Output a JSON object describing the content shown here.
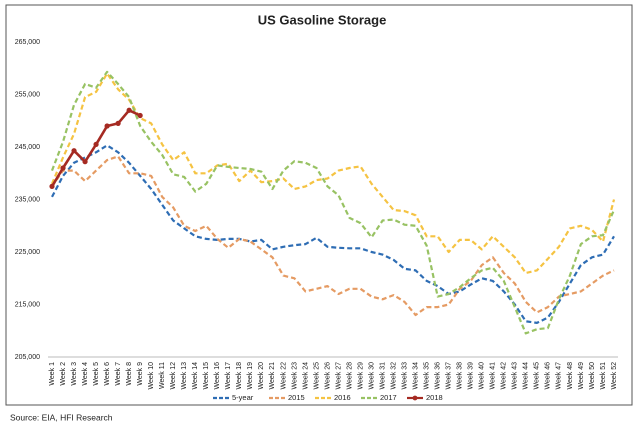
{
  "chart_data": {
    "type": "line",
    "title": "US Gasoline Storage",
    "source": "Source: EIA, HFI Research",
    "categories": [
      "Week 1",
      "Week 2",
      "Week 3",
      "Week 4",
      "Week 5",
      "Week 6",
      "Week 7",
      "Week 8",
      "Week 9",
      "Week 10",
      "Week 11",
      "Week 12",
      "Week 13",
      "Week 14",
      "Week 15",
      "Week 16",
      "Week 17",
      "Week 18",
      "Week 19",
      "Week 20",
      "Week 21",
      "Week 22",
      "Week 23",
      "Week 24",
      "Week 25",
      "Week 26",
      "Week 27",
      "Week 28",
      "Week 29",
      "Week 30",
      "Week 31",
      "Week 32",
      "Week 33",
      "Week 34",
      "Week 35",
      "Week 36",
      "Week 37",
      "Week 38",
      "Week 39",
      "Week 40",
      "Week 41",
      "Week 42",
      "Week 43",
      "Week 44",
      "Week 45",
      "Week 46",
      "Week 47",
      "Week 48",
      "Week 49",
      "Week 50",
      "Week 51",
      "Week 52"
    ],
    "ylim": [
      205000,
      265000
    ],
    "yticks": [
      {
        "value": 205000,
        "label": "205,000"
      },
      {
        "value": 215000,
        "label": "215,000"
      },
      {
        "value": 225000,
        "label": "225,000"
      },
      {
        "value": 235000,
        "label": "235,000"
      },
      {
        "value": 245000,
        "label": "245,000"
      },
      {
        "value": 255000,
        "label": "255,000"
      },
      {
        "value": 265000,
        "label": "265,000"
      }
    ],
    "grid": false,
    "legend": "bottom",
    "series": [
      {
        "name": "5-year",
        "color": "#2e6db4",
        "dash": true,
        "values": [
          235500,
          239500,
          242000,
          243000,
          244000,
          245300,
          244000,
          242000,
          239500,
          237000,
          234000,
          231000,
          229500,
          228000,
          227500,
          227300,
          227500,
          227500,
          227000,
          227300,
          225500,
          226000,
          226300,
          226500,
          227700,
          226000,
          225800,
          225700,
          225700,
          225000,
          224500,
          223500,
          221800,
          221500,
          219500,
          218500,
          217000,
          217500,
          218800,
          220000,
          219500,
          217500,
          215000,
          211800,
          211500,
          212500,
          215500,
          219000,
          222500,
          224000,
          224500,
          228000
        ]
      },
      {
        "name": "2015",
        "color": "#e59b63",
        "dash": true,
        "values": [
          237500,
          240500,
          240500,
          238500,
          240500,
          242500,
          243200,
          240000,
          240000,
          239500,
          235500,
          233500,
          230000,
          229000,
          230000,
          227500,
          225800,
          227500,
          227000,
          225500,
          224000,
          220500,
          220000,
          217500,
          218000,
          218500,
          217000,
          218000,
          218000,
          216500,
          216000,
          216800,
          215500,
          213000,
          214500,
          214500,
          215000,
          218000,
          219500,
          222500,
          224000,
          221000,
          219000,
          215500,
          213500,
          214500,
          216500,
          217000,
          217500,
          219000,
          220500,
          221500
        ]
      },
      {
        "name": "2016",
        "color": "#f5c342",
        "dash": true,
        "values": [
          238000,
          243000,
          247500,
          254500,
          255500,
          259000,
          256000,
          254000,
          250500,
          249500,
          245500,
          242500,
          244000,
          240000,
          240000,
          241500,
          241800,
          238500,
          240500,
          238300,
          238500,
          239000,
          237000,
          237500,
          238700,
          239000,
          240500,
          241000,
          241300,
          238000,
          235500,
          233000,
          232800,
          232000,
          228000,
          228000,
          225000,
          227300,
          227300,
          225500,
          228000,
          226000,
          224000,
          221000,
          221500,
          223700,
          226000,
          229500,
          230000,
          229200,
          227000,
          235000
        ]
      },
      {
        "name": "2017",
        "color": "#98c263",
        "dash": true,
        "values": [
          240500,
          246000,
          253000,
          257000,
          256300,
          259300,
          257000,
          254500,
          249000,
          246000,
          243500,
          239800,
          239300,
          236500,
          238000,
          241500,
          241200,
          241000,
          240800,
          240300,
          237000,
          240500,
          242300,
          242000,
          241000,
          237500,
          235800,
          231500,
          230500,
          227800,
          231000,
          231200,
          230200,
          230000,
          226200,
          216500,
          217000,
          218300,
          220000,
          221500,
          222000,
          219500,
          214500,
          209500,
          210300,
          210500,
          216000,
          220500,
          226500,
          228000,
          228200,
          233000
        ]
      },
      {
        "name": "2018",
        "color": "#a52a22",
        "dash": false,
        "marker": "circle",
        "values": [
          237500,
          241000,
          244300,
          242200,
          245500,
          249000,
          249500,
          252000,
          251000,
          null,
          null,
          null,
          null,
          null,
          null,
          null,
          null,
          null,
          null,
          null,
          null,
          null,
          null,
          null,
          null,
          null,
          null,
          null,
          null,
          null,
          null,
          null,
          null,
          null,
          null,
          null,
          null,
          null,
          null,
          null,
          null,
          null,
          null,
          null,
          null,
          null,
          null,
          null,
          null,
          null,
          null,
          null
        ]
      }
    ]
  }
}
